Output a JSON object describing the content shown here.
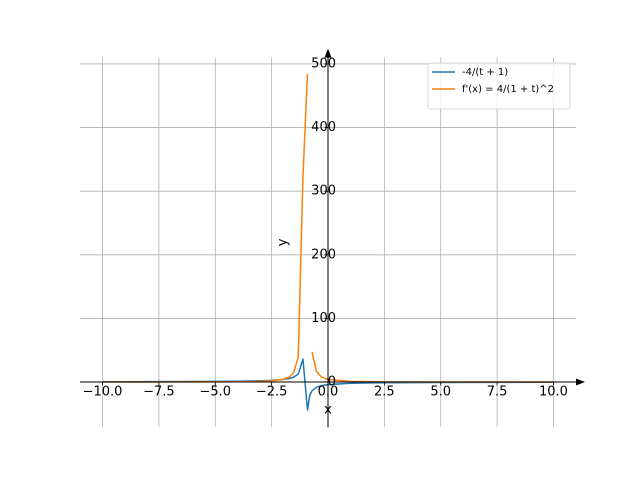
{
  "chart_data": {
    "type": "line",
    "x_label": "x",
    "y_label": "y",
    "x": [
      -10,
      -8,
      -6,
      -4,
      -3,
      -2.5,
      -2,
      -1.72,
      -1.52,
      -1.32,
      -1.11,
      -0.91,
      -0.81,
      -0.71,
      -0.51,
      -0.3,
      0,
      1,
      2.5,
      5,
      7.5,
      10
    ],
    "series": [
      {
        "name": "-4/(t + 1)",
        "color": "#1f77b4",
        "values": [
          0.44,
          0.57,
          0.8,
          1.33,
          2,
          2.67,
          4,
          5.56,
          7.69,
          12.5,
          36,
          -44,
          -21,
          -13.8,
          -8.16,
          -5.71,
          -4,
          -2,
          -1.14,
          -0.67,
          -0.47,
          -0.36
        ]
      },
      {
        "name": "f'(x) = 4/(1 + t)^2",
        "color": "#ff7f0e",
        "values": [
          0.05,
          0.08,
          0.16,
          0.44,
          1,
          1.78,
          4,
          7.72,
          14.8,
          39,
          324,
          484,
          null,
          47.6,
          16.7,
          8.16,
          4,
          1,
          0.33,
          0.11,
          0.07,
          0.05
        ]
      }
    ],
    "xlim": [
      -11,
      11
    ],
    "ylim": [
      -71,
      510
    ],
    "xticks": [
      {
        "value": -10,
        "label": "−10.0"
      },
      {
        "value": -7.5,
        "label": "−7.5"
      },
      {
        "value": -5,
        "label": "−5.0"
      },
      {
        "value": -2.5,
        "label": "−2.5"
      },
      {
        "value": 0,
        "label": "0.0"
      },
      {
        "value": 2.5,
        "label": "2.5"
      },
      {
        "value": 5,
        "label": "5.0"
      },
      {
        "value": 7.5,
        "label": "7.5"
      },
      {
        "value": 10,
        "label": "10.0"
      }
    ],
    "yticks": [
      0,
      100,
      200,
      300,
      400,
      500
    ],
    "grid": true,
    "legend": "upper right"
  }
}
